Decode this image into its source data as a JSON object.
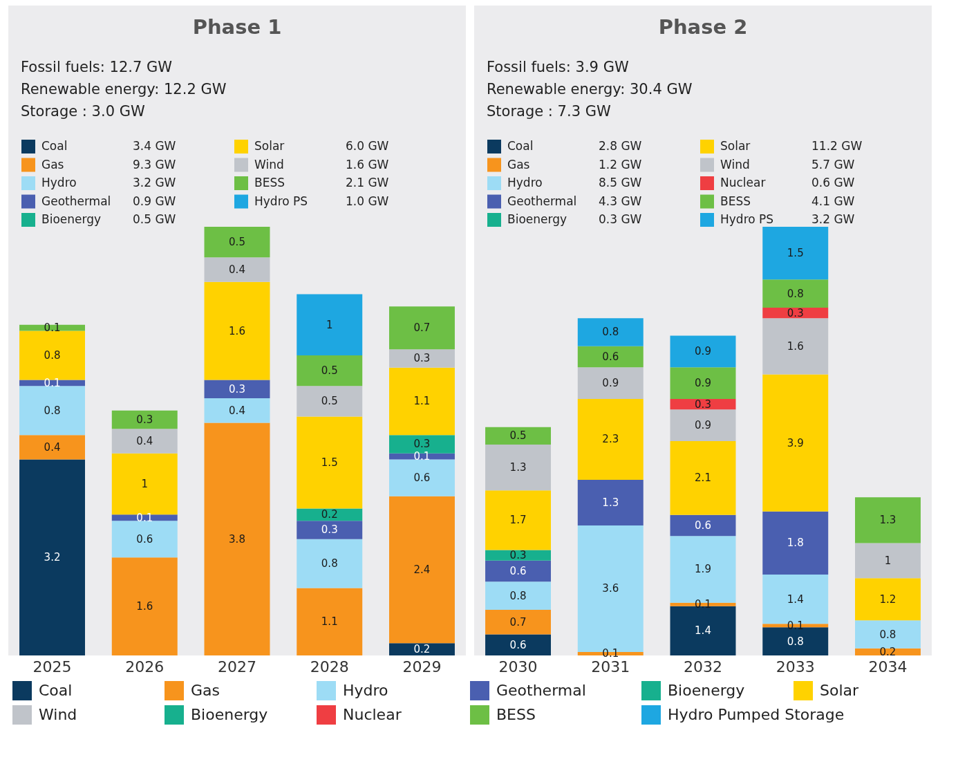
{
  "chart_data": [
    {
      "type": "bar",
      "title": "Phase 1",
      "stacked": true,
      "data_labels": true,
      "legend": "top left",
      "categories": [
        "2025",
        "2026",
        "2027",
        "2028",
        "2029"
      ],
      "annotations": [
        "Fossil fuels: 12.7 GW",
        "Renewable energy: 12.2 GW",
        "Storage : 3.0 GW",
        "3.4 GW",
        "9.3 GW",
        "3.2 GW",
        "0.9 GW",
        "0.5 GW",
        "6.0 GW",
        "1.6 GW",
        "2.1 GW",
        "1.0 GW"
      ],
      "series": [
        {
          "name": "Coal",
          "color": "#0b3a5f",
          "values": [
            3.2,
            null,
            null,
            null,
            0.2
          ]
        },
        {
          "name": "Gas",
          "color": "#f7941d",
          "values": [
            0.4,
            1.6,
            3.8,
            1.1,
            2.4
          ]
        },
        {
          "name": "Hydro",
          "color": "#9ddcf5",
          "values": [
            0.8,
            0.6,
            0.4,
            0.8,
            0.6
          ]
        },
        {
          "name": "Geothermal",
          "color": "#4a5fb0",
          "values": [
            0.1,
            0.1,
            0.3,
            0.3,
            0.1
          ]
        },
        {
          "name": "Bioenergy",
          "color": "#17b08e",
          "values": [
            null,
            null,
            null,
            0.2,
            0.3
          ]
        },
        {
          "name": "Solar",
          "color": "#ffd200",
          "values": [
            0.8,
            1,
            1.6,
            1.5,
            1.1
          ]
        },
        {
          "name": "Wind",
          "color": "#c0c4ca",
          "values": [
            null,
            0.4,
            0.4,
            0.5,
            0.3
          ]
        },
        {
          "name": "BESS",
          "color": "#6dbf45",
          "values": [
            0.1,
            0.3,
            0.5,
            0.5,
            0.7
          ]
        },
        {
          "name": "Hydro PS",
          "color": "#1ea7e1",
          "values": [
            null,
            null,
            null,
            1,
            null
          ]
        }
      ]
    },
    {
      "type": "bar",
      "title": "Phase 2",
      "stacked": true,
      "data_labels": true,
      "legend": "top left",
      "categories": [
        "2030",
        "2031",
        "2032",
        "2033",
        "2034"
      ],
      "annotations": [
        "Fossil fuels: 3.9 GW",
        "Renewable energy: 30.4 GW",
        "Storage : 7.3 GW",
        "2.8 GW",
        "1.2 GW",
        "8.5 GW",
        "4.3 GW",
        "0.3 GW",
        "11.2 GW",
        "5.7 GW",
        "0.6 GW",
        "4.1 GW",
        "3.2 GW"
      ],
      "series": [
        {
          "name": "Coal",
          "color": "#0b3a5f",
          "values": [
            0.6,
            null,
            1.4,
            0.8,
            null
          ]
        },
        {
          "name": "Gas",
          "color": "#f7941d",
          "values": [
            0.7,
            0.1,
            0.1,
            0.1,
            0.2
          ]
        },
        {
          "name": "Hydro",
          "color": "#9ddcf5",
          "values": [
            0.8,
            3.6,
            1.9,
            1.4,
            0.8
          ]
        },
        {
          "name": "Geothermal",
          "color": "#4a5fb0",
          "values": [
            0.6,
            1.3,
            0.6,
            1.8,
            null
          ]
        },
        {
          "name": "Bioenergy",
          "color": "#17b08e",
          "values": [
            0.3,
            null,
            null,
            null,
            null
          ]
        },
        {
          "name": "Solar",
          "color": "#ffd200",
          "values": [
            1.7,
            2.3,
            2.1,
            3.9,
            1.2
          ]
        },
        {
          "name": "Wind",
          "color": "#c0c4ca",
          "values": [
            1.3,
            0.9,
            0.9,
            1.6,
            1
          ]
        },
        {
          "name": "Nuclear",
          "color": "#ef3e42",
          "values": [
            null,
            null,
            0.3,
            0.3,
            null
          ]
        },
        {
          "name": "BESS",
          "color": "#6dbf45",
          "values": [
            0.5,
            0.6,
            0.9,
            0.8,
            1.3
          ]
        },
        {
          "name": "Hydro PS",
          "color": "#1ea7e1",
          "values": [
            null,
            0.8,
            0.9,
            1.5,
            null
          ]
        }
      ]
    },
    {
      "type": "other",
      "categories": [
        "Coal",
        "Gas",
        "Hydro",
        "Geothermal",
        "Bioenergy",
        "Solar",
        "Wind",
        "Bioenergy",
        "Nuclear",
        "BESS",
        "Hydro Pumped Storage"
      ],
      "colors": [
        "#0b3a5f",
        "#f7941d",
        "#9ddcf5",
        "#4a5fb0",
        "#17b08e",
        "#ffd200",
        "#c0c4ca",
        "#17b08e",
        "#ef3e42",
        "#6dbf45",
        "#1ea7e1"
      ]
    }
  ]
}
